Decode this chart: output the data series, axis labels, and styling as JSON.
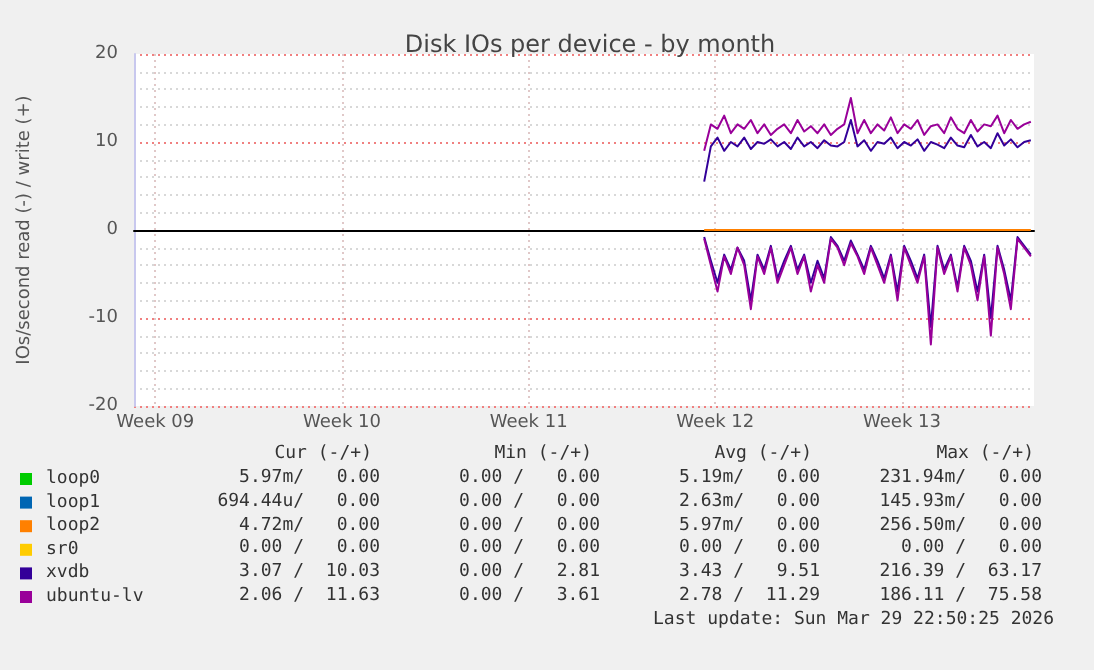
{
  "chart_data": {
    "type": "line",
    "title": "Disk IOs per device - by month",
    "ylabel": "IOs/second read (-) / write (+)",
    "xlim": [
      "2026-02-24T04:50",
      "2026-03-29T22:50"
    ],
    "xticks": [
      {
        "value": "2026-02-25T00:00",
        "label": "Week 09"
      },
      {
        "value": "2026-03-04T00:00",
        "label": "Week 10"
      },
      {
        "value": "2026-03-11T00:00",
        "label": "Week 11"
      },
      {
        "value": "2026-03-18T00:00",
        "label": "Week 12"
      },
      {
        "value": "2026-03-25T00:00",
        "label": "Week 13"
      }
    ],
    "ylim": [
      -20,
      20
    ],
    "yticks": [
      -20,
      -10,
      0,
      10,
      20
    ],
    "grid": true,
    "legend": "bottom left",
    "marker": "none",
    "line_style": "solid",
    "x": [
      "2026-03-17T14:00",
      "2026-03-17T20:00",
      "2026-03-18T02:00",
      "2026-03-18T08:00",
      "2026-03-18T14:00",
      "2026-03-18T20:00",
      "2026-03-19T02:00",
      "2026-03-19T08:00",
      "2026-03-19T14:00",
      "2026-03-19T20:00",
      "2026-03-20T02:00",
      "2026-03-20T08:00",
      "2026-03-20T14:00",
      "2026-03-20T20:00",
      "2026-03-21T02:00",
      "2026-03-21T08:00",
      "2026-03-21T14:00",
      "2026-03-21T20:00",
      "2026-03-22T02:00",
      "2026-03-22T08:00",
      "2026-03-22T14:00",
      "2026-03-22T20:00",
      "2026-03-23T02:00",
      "2026-03-23T08:00",
      "2026-03-23T14:00",
      "2026-03-23T20:00",
      "2026-03-24T02:00",
      "2026-03-24T08:00",
      "2026-03-24T14:00",
      "2026-03-24T20:00",
      "2026-03-25T02:00",
      "2026-03-25T08:00",
      "2026-03-25T14:00",
      "2026-03-25T20:00",
      "2026-03-26T02:00",
      "2026-03-26T08:00",
      "2026-03-26T14:00",
      "2026-03-26T20:00",
      "2026-03-27T02:00",
      "2026-03-27T08:00",
      "2026-03-27T14:00",
      "2026-03-27T20:00",
      "2026-03-28T02:00",
      "2026-03-28T08:00",
      "2026-03-28T14:00",
      "2026-03-28T20:00",
      "2026-03-29T02:00",
      "2026-03-29T08:00",
      "2026-03-29T14:00",
      "2026-03-29T20:00"
    ],
    "series": [
      {
        "name": "loop0",
        "color": "#00cc00",
        "values": [
          null,
          null,
          null,
          null,
          null,
          null,
          null,
          null,
          null,
          null,
          null,
          null,
          null,
          null,
          null,
          null,
          null,
          null,
          null,
          null,
          null,
          null,
          null,
          null,
          null,
          null,
          null,
          null,
          null,
          null,
          null,
          null,
          null,
          null,
          null,
          null,
          null,
          null,
          null,
          null,
          null,
          null,
          null,
          null,
          null,
          null,
          null,
          null,
          null,
          null
        ]
      },
      {
        "name": "loop1",
        "color": "#0066b3",
        "values": [
          null,
          null,
          null,
          null,
          null,
          null,
          null,
          null,
          null,
          null,
          null,
          null,
          null,
          null,
          null,
          null,
          null,
          null,
          null,
          null,
          null,
          null,
          null,
          null,
          null,
          null,
          null,
          null,
          null,
          null,
          null,
          null,
          null,
          null,
          null,
          null,
          null,
          null,
          null,
          null,
          null,
          null,
          null,
          null,
          null,
          null,
          null,
          null,
          null,
          null
        ]
      },
      {
        "name": "loop2",
        "color": "#ff8000",
        "x": [
          "2026-03-17T14:00",
          "2026-03-29T20:00"
        ],
        "values": [
          0,
          0
        ]
      },
      {
        "name": "sr0",
        "color": "#ffcc00",
        "values": [
          null,
          null,
          null,
          null,
          null,
          null,
          null,
          null,
          null,
          null,
          null,
          null,
          null,
          null,
          null,
          null,
          null,
          null,
          null,
          null,
          null,
          null,
          null,
          null,
          null,
          null,
          null,
          null,
          null,
          null,
          null,
          null,
          null,
          null,
          null,
          null,
          null,
          null,
          null,
          null,
          null,
          null,
          null,
          null,
          null,
          null,
          null,
          null,
          null,
          null
        ]
      },
      {
        "name": "xvdb",
        "color": "#330099",
        "values": [
          5.5,
          9.5,
          10.5,
          9,
          10,
          9.5,
          10.5,
          9.2,
          10,
          9.8,
          10.3,
          9.5,
          10,
          9.2,
          10.5,
          9.5,
          10,
          9.3,
          10.2,
          9.6,
          9.5,
          10,
          12.5,
          9.5,
          10.2,
          9,
          10,
          9.8,
          10.5,
          9.3,
          10,
          9.6,
          10.3,
          9,
          10,
          9.7,
          9.3,
          10.5,
          9.6,
          9.4,
          10.8,
          9.5,
          10,
          9.3,
          11,
          9.6,
          10.3,
          9.4,
          10,
          10.2
        ]
      },
      {
        "color": "#330099",
        "values": [
          -0.8,
          -3.5,
          -6,
          -2.8,
          -4.5,
          -2,
          -3.5,
          -8,
          -2.8,
          -4.5,
          -1.8,
          -5.5,
          -3.5,
          -1.8,
          -4.5,
          -2.8,
          -6,
          -3.5,
          -5.5,
          -0.8,
          -1.8,
          -3.5,
          -1.2,
          -2.8,
          -4.5,
          -1.8,
          -3.5,
          -5.5,
          -2.8,
          -7,
          -1.8,
          -3.5,
          -5.5,
          -2.8,
          -11,
          -1.8,
          -4.5,
          -2.8,
          -6.5,
          -1.8,
          -3.5,
          -7,
          -2.8,
          -10,
          -1.8,
          -4.5,
          -8,
          -0.8,
          -1.8,
          -2.8
        ]
      },
      {
        "name": "ubuntu-lv",
        "color": "#990099",
        "values": [
          9,
          12,
          11.5,
          13,
          11,
          12,
          11.5,
          12.5,
          11,
          12,
          10.8,
          11.5,
          12,
          11,
          12.5,
          11.2,
          11.8,
          11,
          12,
          10.8,
          11.5,
          12,
          15,
          11,
          12.5,
          11,
          12,
          11.3,
          12.8,
          11,
          12,
          11.5,
          12.5,
          10.8,
          11.8,
          12,
          11,
          12.8,
          11.5,
          11,
          12.5,
          11.2,
          12,
          11.8,
          13,
          11,
          12.5,
          11.5,
          12,
          12.3
        ]
      },
      {
        "color": "#990099",
        "values": [
          -1,
          -4,
          -7,
          -3,
          -5,
          -2,
          -4,
          -9,
          -3,
          -5,
          -2,
          -6,
          -4,
          -2,
          -5,
          -3,
          -7,
          -4,
          -6,
          -1,
          -2,
          -4,
          -1.5,
          -3,
          -5,
          -2,
          -4,
          -6,
          -3,
          -8,
          -2,
          -4,
          -6,
          -3,
          -13,
          -2,
          -5,
          -3,
          -7,
          -2,
          -4,
          -8,
          -3,
          -12,
          -2,
          -5,
          -9,
          -1,
          -2,
          -3
        ]
      }
    ],
    "annotations": [
      "Cur (-/+)",
      "Min (-/+)",
      "Avg (-/+)",
      "Max (-/+)",
      "5.97m/   0.00",
      "0.00 /   0.00",
      "5.19m/   0.00",
      "231.94m/   0.00",
      "694.44u/   0.00",
      "0.00 /   0.00",
      "2.63m/   0.00",
      "145.93m/   0.00",
      "4.72m/   0.00",
      "0.00 /   0.00",
      "5.97m/   0.00",
      "256.50m/   0.00",
      "0.00 /   0.00",
      "0.00 /   0.00",
      "0.00 /   0.00",
      "0.00 /   0.00",
      "3.07 /  10.03",
      "0.00 /   2.81",
      "3.43 /   9.51",
      "216.39 /  63.17",
      "2.06 /  11.63",
      "0.00 /   3.61",
      "2.78 /  11.29",
      "186.11 /  75.58",
      "Last update: Sun Mar 29 22:50:25 2026"
    ]
  }
}
